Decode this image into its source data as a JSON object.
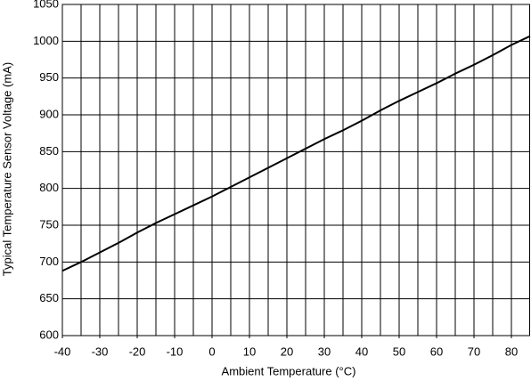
{
  "chart_data": {
    "type": "line",
    "x_label": "Ambient Temperature (°C)",
    "y_label": "Typical Temperature Sensor Voltage (mA)",
    "x": [
      -40,
      -35,
      -30,
      -25,
      -20,
      -15,
      -10,
      -5,
      0,
      5,
      10,
      15,
      20,
      25,
      30,
      35,
      40,
      45,
      50,
      55,
      60,
      65,
      70,
      75,
      80,
      85
    ],
    "series": [
      {
        "color": "#000000",
        "values": [
          688,
          700,
          713,
          726,
          740,
          753,
          765,
          777,
          789,
          802,
          815,
          828,
          841,
          854,
          867,
          879,
          892,
          906,
          919,
          931,
          943,
          956,
          968,
          981,
          995,
          1007
        ]
      }
    ],
    "xlim": [
      -40,
      85
    ],
    "ylim": [
      600,
      1050
    ],
    "xticks": [
      -40,
      -30,
      -20,
      -10,
      0,
      10,
      20,
      30,
      40,
      50,
      60,
      70,
      80
    ],
    "xgrid": [
      -35,
      -30,
      -25,
      -20,
      -15,
      -10,
      -5,
      0,
      5,
      10,
      15,
      20,
      25,
      30,
      35,
      40,
      45,
      50,
      55,
      60,
      65,
      70,
      75,
      80
    ],
    "yticks": [
      600,
      650,
      700,
      750,
      800,
      850,
      900,
      950,
      1000,
      1050
    ],
    "grid": true
  }
}
